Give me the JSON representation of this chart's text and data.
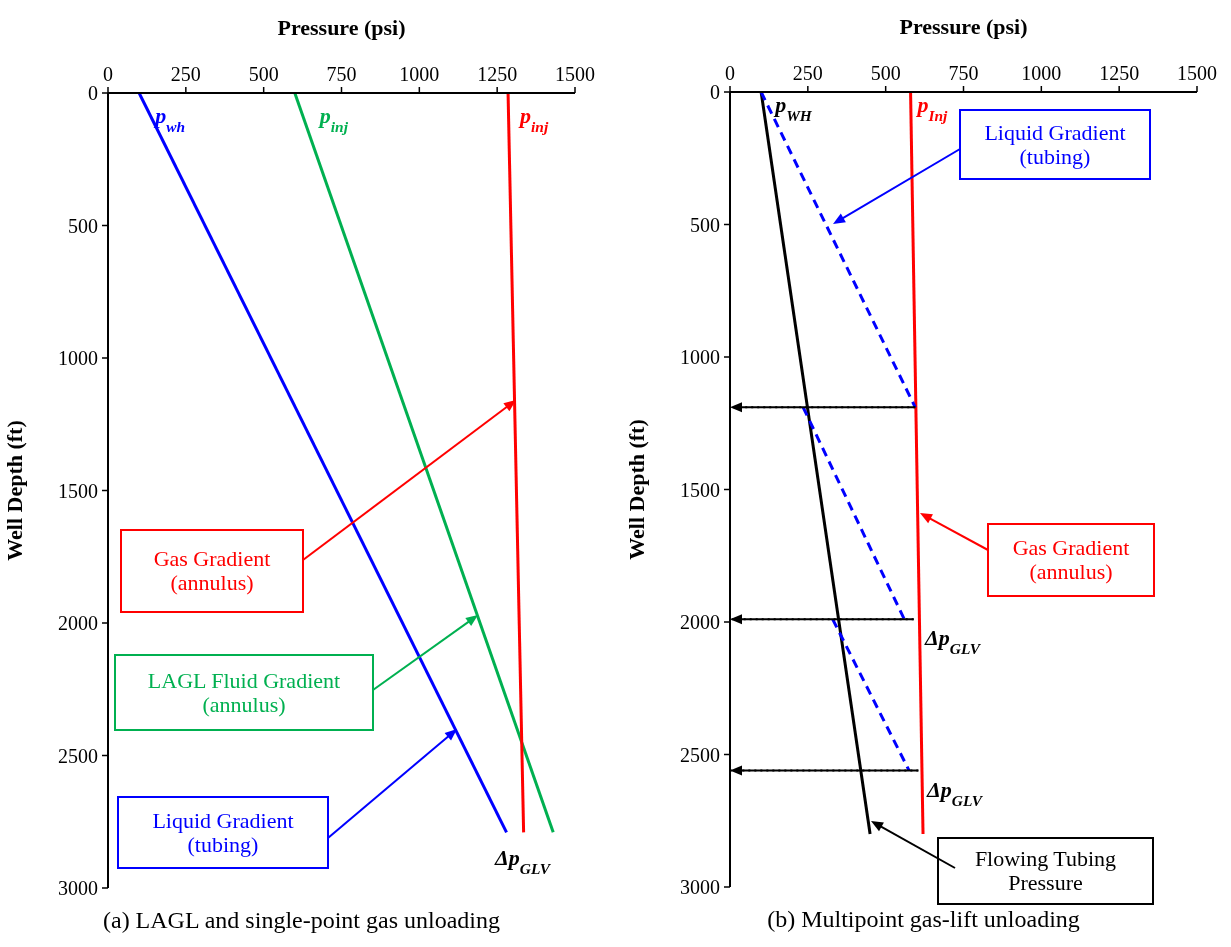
{
  "chart_data": [
    {
      "type": "line",
      "xlabel": "Pressure (psi)",
      "ylabel": "Well Depth (ft)",
      "xlim": [
        0,
        1500
      ],
      "xticks": [
        0,
        250,
        500,
        750,
        1000,
        1250,
        1500
      ],
      "ylim": [
        3000,
        0
      ],
      "yticks": [
        0,
        500,
        1000,
        1500,
        2000,
        2500,
        3000
      ],
      "series": [
        {
          "color": "#0000ff",
          "x": [
            100,
            1280
          ],
          "values": [
            0,
            2790
          ]
        },
        {
          "color": "#00b050",
          "x": [
            600,
            1430
          ],
          "values": [
            0,
            2790
          ]
        },
        {
          "color": "#ff0000",
          "x": [
            1285,
            1335
          ],
          "values": [
            0,
            2790
          ]
        }
      ],
      "annotations": [
        {
          "text": "p$_{wh}$",
          "x": 100,
          "y": 0
        },
        {
          "text": "p$_{inj}$",
          "x": 600,
          "y": 0
        },
        {
          "text": "p$_{inj}$",
          "x": 1285,
          "y": 0
        },
        "Gas Gradient\n(annulus)",
        "LAGL Fluid Gradient\n(annulus)",
        "Liquid Gradient\n(tubing)",
        "Δp$_{GLV}$",
        "(a) LAGL and single-point gas unloading"
      ]
    },
    {
      "type": "line",
      "xlabel": "Pressure (psi)",
      "ylabel": "Well Depth (ft)",
      "xlim": [
        0,
        1500
      ],
      "xticks": [
        0,
        250,
        500,
        750,
        1000,
        1250,
        1500
      ],
      "ylim": [
        3000,
        0
      ],
      "yticks": [
        0,
        500,
        1000,
        1500,
        2000,
        2500,
        3000
      ],
      "series": [
        {
          "color": "#000000",
          "x": [
            100,
            450
          ],
          "values": [
            0,
            2800
          ]
        },
        {
          "color": "#ff0000",
          "x": [
            580,
            620
          ],
          "values": [
            0,
            2800
          ]
        },
        {
          "color": "#0000ff",
          "line_style": "dashed",
          "x": [
            100,
            595,
            null,
            235,
            560,
            null,
            330,
            575
          ],
          "values": [
            0,
            1190,
            null,
            1190,
            1990,
            null,
            1990,
            2560
          ]
        },
        {
          "color": "#000000",
          "line_style": "dotted",
          "x": [
            595,
            0,
            null,
            590,
            0,
            null,
            605,
            0
          ],
          "values": [
            1190,
            1190,
            null,
            1990,
            1990,
            null,
            2560,
            2560
          ]
        }
      ],
      "annotations": [
        {
          "text": "p$_{WH}$",
          "x": 100,
          "y": 0
        },
        {
          "text": "p$_{Inj}$",
          "x": 580,
          "y": 0
        },
        "Liquid Gradient\n(tubing)",
        "Gas Gradient\n(annulus)",
        "Flowing Tubing\nPressure",
        "Δp$_{GLV}$",
        "Δp$_{GLV}$",
        "(b) Multipoint gas-lift unloading"
      ]
    }
  ]
}
